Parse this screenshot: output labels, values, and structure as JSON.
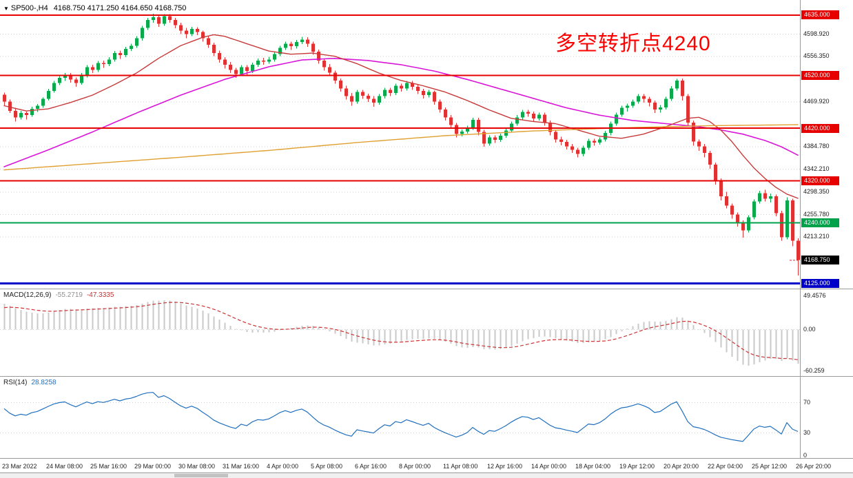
{
  "window": {
    "dropdown_glyph": "▼",
    "symbol": "SP500-,H4",
    "ohlc": "4168.750 4171.250 4164.650 4168.750"
  },
  "annotation": {
    "text": "多空转折点4240",
    "color": "#FF0000"
  },
  "chart_data": {
    "type": "candlestick",
    "symbol": "SP500-",
    "timeframe": "H4",
    "up_color": "#0BA94C",
    "down_color": "#E03232",
    "grid_color": "#CFCFCF",
    "price_axis": {
      "ticks": [
        {
          "price": 4598.92,
          "label": "4598.920"
        },
        {
          "price": 4556.35,
          "label": "4556.350"
        },
        {
          "price": 4469.92,
          "label": "4469.920"
        },
        {
          "price": 4384.78,
          "label": "4384.780"
        },
        {
          "price": 4342.21,
          "label": "4342.210"
        },
        {
          "price": 4298.35,
          "label": "4298.350"
        },
        {
          "price": 4255.78,
          "label": "4255.780"
        },
        {
          "price": 4213.21,
          "label": "4213.210"
        }
      ]
    },
    "hlines": [
      {
        "price": 4635,
        "label": "4635.000",
        "color": "#E60000",
        "width": 2
      },
      {
        "price": 4520,
        "label": "4520.000",
        "color": "#E60000",
        "width": 2
      },
      {
        "price": 4420,
        "label": "4420.000",
        "color": "#E60000",
        "width": 2
      },
      {
        "price": 4320,
        "label": "4320.000",
        "color": "#E60000",
        "width": 2
      },
      {
        "price": 4240,
        "label": "4240.000",
        "color": "#00A14B",
        "width": 2
      },
      {
        "price": 4125,
        "label": "4125.000",
        "color": "#0000C8",
        "width": 3
      }
    ],
    "current_price": {
      "price": 4168.75,
      "label": "4168.750",
      "badge_color": "#000000",
      "dash_color": "#D03030"
    },
    "time_labels": [
      {
        "i": 0,
        "t": "23 Mar 2022"
      },
      {
        "i": 8,
        "t": "24 Mar 08:00"
      },
      {
        "i": 16,
        "t": "25 Mar 16:00"
      },
      {
        "i": 24,
        "t": "29 Mar 00:00"
      },
      {
        "i": 32,
        "t": "30 Mar 08:00"
      },
      {
        "i": 40,
        "t": "31 Mar 16:00"
      },
      {
        "i": 48,
        "t": "4 Apr 00:00"
      },
      {
        "i": 56,
        "t": "5 Apr 08:00"
      },
      {
        "i": 64,
        "t": "6 Apr 16:00"
      },
      {
        "i": 72,
        "t": "8 Apr 00:00"
      },
      {
        "i": 80,
        "t": "11 Apr 08:00"
      },
      {
        "i": 88,
        "t": "12 Apr 16:00"
      },
      {
        "i": 96,
        "t": "14 Apr 00:00"
      },
      {
        "i": 104,
        "t": "18 Apr 04:00"
      },
      {
        "i": 112,
        "t": "19 Apr 12:00"
      },
      {
        "i": 120,
        "t": "20 Apr 20:00"
      },
      {
        "i": 128,
        "t": "22 Apr 04:00"
      },
      {
        "i": 136,
        "t": "25 Apr 12:00"
      },
      {
        "i": 144,
        "t": "26 Apr 20:00"
      }
    ],
    "candles": [
      [
        4483,
        4487,
        4462,
        4470
      ],
      [
        4470,
        4474,
        4448,
        4452
      ],
      [
        4452,
        4458,
        4432,
        4440
      ],
      [
        4440,
        4452,
        4436,
        4448
      ],
      [
        4448,
        4451,
        4436,
        4444
      ],
      [
        4444,
        4460,
        4441,
        4456
      ],
      [
        4456,
        4465,
        4450,
        4462
      ],
      [
        4462,
        4478,
        4458,
        4475
      ],
      [
        4475,
        4494,
        4472,
        4490
      ],
      [
        4490,
        4509,
        4487,
        4505
      ],
      [
        4505,
        4519,
        4501,
        4515
      ],
      [
        4515,
        4524,
        4509,
        4520
      ],
      [
        4520,
        4524,
        4506,
        4512
      ],
      [
        4512,
        4516,
        4498,
        4505
      ],
      [
        4505,
        4524,
        4502,
        4520
      ],
      [
        4520,
        4539,
        4516,
        4535
      ],
      [
        4535,
        4540,
        4524,
        4530
      ],
      [
        4530,
        4547,
        4526,
        4543
      ],
      [
        4543,
        4548,
        4534,
        4541
      ],
      [
        4541,
        4554,
        4537,
        4550
      ],
      [
        4550,
        4566,
        4546,
        4562
      ],
      [
        4562,
        4567,
        4551,
        4558
      ],
      [
        4558,
        4574,
        4554,
        4570
      ],
      [
        4570,
        4580,
        4566,
        4576
      ],
      [
        4576,
        4594,
        4572,
        4590
      ],
      [
        4590,
        4614,
        4586,
        4610
      ],
      [
        4610,
        4629,
        4606,
        4625
      ],
      [
        4625,
        4637,
        4620,
        4630
      ],
      [
        4630,
        4634,
        4612,
        4618
      ],
      [
        4618,
        4636,
        4614,
        4632
      ],
      [
        4632,
        4636,
        4620,
        4625
      ],
      [
        4625,
        4629,
        4609,
        4615
      ],
      [
        4615,
        4620,
        4598,
        4605
      ],
      [
        4605,
        4610,
        4590,
        4598
      ],
      [
        4598,
        4612,
        4594,
        4608
      ],
      [
        4608,
        4611,
        4596,
        4602
      ],
      [
        4602,
        4605,
        4584,
        4590
      ],
      [
        4590,
        4594,
        4572,
        4578
      ],
      [
        4578,
        4582,
        4556,
        4562
      ],
      [
        4562,
        4567,
        4544,
        4550
      ],
      [
        4550,
        4554,
        4533,
        4540
      ],
      [
        4540,
        4545,
        4524,
        4530
      ],
      [
        4530,
        4534,
        4515,
        4522
      ],
      [
        4522,
        4539,
        4518,
        4535
      ],
      [
        4535,
        4539,
        4521,
        4528
      ],
      [
        4528,
        4544,
        4524,
        4540
      ],
      [
        4540,
        4552,
        4536,
        4548
      ],
      [
        4548,
        4553,
        4540,
        4546
      ],
      [
        4546,
        4555,
        4542,
        4550
      ],
      [
        4550,
        4564,
        4546,
        4560
      ],
      [
        4560,
        4576,
        4556,
        4572
      ],
      [
        4572,
        4584,
        4568,
        4580
      ],
      [
        4580,
        4584,
        4568,
        4575
      ],
      [
        4575,
        4587,
        4571,
        4583
      ],
      [
        4583,
        4593,
        4579,
        4588
      ],
      [
        4588,
        4592,
        4574,
        4580
      ],
      [
        4580,
        4584,
        4559,
        4565
      ],
      [
        4565,
        4569,
        4542,
        4548
      ],
      [
        4548,
        4552,
        4529,
        4535
      ],
      [
        4535,
        4541,
        4519,
        4525
      ],
      [
        4525,
        4529,
        4504,
        4510
      ],
      [
        4510,
        4514,
        4489,
        4495
      ],
      [
        4495,
        4500,
        4474,
        4480
      ],
      [
        4480,
        4486,
        4462,
        4470
      ],
      [
        4470,
        4492,
        4466,
        4488
      ],
      [
        4488,
        4492,
        4475,
        4481
      ],
      [
        4481,
        4485,
        4469,
        4475
      ],
      [
        4475,
        4480,
        4460,
        4468
      ],
      [
        4468,
        4484,
        4464,
        4480
      ],
      [
        4480,
        4496,
        4476,
        4492
      ],
      [
        4492,
        4496,
        4480,
        4486
      ],
      [
        4486,
        4504,
        4482,
        4500
      ],
      [
        4500,
        4504,
        4489,
        4495
      ],
      [
        4495,
        4509,
        4491,
        4505
      ],
      [
        4505,
        4509,
        4492,
        4498
      ],
      [
        4498,
        4502,
        4484,
        4490
      ],
      [
        4490,
        4494,
        4476,
        4482
      ],
      [
        4482,
        4492,
        4478,
        4488
      ],
      [
        4488,
        4491,
        4464,
        4470
      ],
      [
        4470,
        4474,
        4449,
        4455
      ],
      [
        4455,
        4459,
        4434,
        4440
      ],
      [
        4440,
        4444,
        4419,
        4425
      ],
      [
        4425,
        4429,
        4402,
        4408
      ],
      [
        4408,
        4417,
        4404,
        4413
      ],
      [
        4413,
        4424,
        4409,
        4420
      ],
      [
        4420,
        4439,
        4416,
        4435
      ],
      [
        4435,
        4439,
        4406,
        4412
      ],
      [
        4412,
        4416,
        4384,
        4390
      ],
      [
        4390,
        4406,
        4386,
        4402
      ],
      [
        4402,
        4406,
        4391,
        4397
      ],
      [
        4397,
        4409,
        4393,
        4405
      ],
      [
        4405,
        4419,
        4401,
        4415
      ],
      [
        4415,
        4432,
        4411,
        4428
      ],
      [
        4428,
        4444,
        4424,
        4440
      ],
      [
        4440,
        4454,
        4436,
        4450
      ],
      [
        4450,
        4454,
        4441,
        4447
      ],
      [
        4447,
        4451,
        4432,
        4438
      ],
      [
        4438,
        4449,
        4434,
        4445
      ],
      [
        4445,
        4449,
        4424,
        4430
      ],
      [
        4430,
        4434,
        4406,
        4412
      ],
      [
        4412,
        4416,
        4392,
        4398
      ],
      [
        4398,
        4403,
        4387,
        4393
      ],
      [
        4393,
        4397,
        4379,
        4385
      ],
      [
        4385,
        4389,
        4372,
        4378
      ],
      [
        4378,
        4382,
        4364,
        4370
      ],
      [
        4370,
        4386,
        4366,
        4382
      ],
      [
        4382,
        4399,
        4378,
        4395
      ],
      [
        4395,
        4399,
        4386,
        4392
      ],
      [
        4392,
        4402,
        4388,
        4398
      ],
      [
        4398,
        4414,
        4394,
        4410
      ],
      [
        4410,
        4432,
        4406,
        4428
      ],
      [
        4428,
        4449,
        4424,
        4445
      ],
      [
        4445,
        4462,
        4441,
        4458
      ],
      [
        4458,
        4466,
        4451,
        4462
      ],
      [
        4462,
        4474,
        4458,
        4470
      ],
      [
        4470,
        4484,
        4466,
        4480
      ],
      [
        4480,
        4484,
        4468,
        4475
      ],
      [
        4475,
        4479,
        4461,
        4468
      ],
      [
        4468,
        4472,
        4448,
        4455
      ],
      [
        4455,
        4463,
        4449,
        4459
      ],
      [
        4459,
        4479,
        4455,
        4475
      ],
      [
        4475,
        4499,
        4471,
        4495
      ],
      [
        4495,
        4513,
        4491,
        4510
      ],
      [
        4510,
        4514,
        4472,
        4480
      ],
      [
        4480,
        4484,
        4422,
        4430
      ],
      [
        4430,
        4434,
        4386,
        4394
      ],
      [
        4394,
        4398,
        4376,
        4385
      ],
      [
        4385,
        4389,
        4364,
        4372
      ],
      [
        4372,
        4376,
        4342,
        4350
      ],
      [
        4350,
        4354,
        4312,
        4320
      ],
      [
        4320,
        4324,
        4282,
        4290
      ],
      [
        4290,
        4298,
        4267,
        4272
      ],
      [
        4272,
        4276,
        4247,
        4255
      ],
      [
        4255,
        4259,
        4232,
        4240
      ],
      [
        4240,
        4244,
        4211,
        4225
      ],
      [
        4225,
        4254,
        4221,
        4250
      ],
      [
        4250,
        4284,
        4246,
        4280
      ],
      [
        4280,
        4300,
        4276,
        4296
      ],
      [
        4296,
        4302,
        4280,
        4285
      ],
      [
        4285,
        4295,
        4278,
        4290
      ],
      [
        4290,
        4293,
        4252,
        4258
      ],
      [
        4258,
        4262,
        4205,
        4212
      ],
      [
        4212,
        4288,
        4208,
        4282
      ],
      [
        4282,
        4285,
        4195,
        4205
      ],
      [
        4205,
        4210,
        4139,
        4168.75
      ]
    ],
    "ma_lines": [
      {
        "name": "ma-slow-magenta",
        "color": "#D915D9",
        "width": 1.6,
        "points": [
          [
            0,
            4346
          ],
          [
            8,
            4378
          ],
          [
            16,
            4412
          ],
          [
            24,
            4448
          ],
          [
            32,
            4482
          ],
          [
            40,
            4512
          ],
          [
            48,
            4536
          ],
          [
            54,
            4549
          ],
          [
            60,
            4552
          ],
          [
            66,
            4548
          ],
          [
            72,
            4540
          ],
          [
            78,
            4528
          ],
          [
            84,
            4512
          ],
          [
            90,
            4494
          ],
          [
            96,
            4476
          ],
          [
            102,
            4458
          ],
          [
            108,
            4444
          ],
          [
            114,
            4434
          ],
          [
            120,
            4428
          ],
          [
            126,
            4422
          ],
          [
            130,
            4416
          ],
          [
            134,
            4408
          ],
          [
            138,
            4396
          ],
          [
            141,
            4384
          ],
          [
            144,
            4368
          ]
        ]
      },
      {
        "name": "ma-mid-red",
        "color": "#C83A3A",
        "width": 1.4,
        "points": [
          [
            0,
            4462
          ],
          [
            4,
            4452
          ],
          [
            8,
            4456
          ],
          [
            12,
            4468
          ],
          [
            16,
            4482
          ],
          [
            20,
            4502
          ],
          [
            24,
            4524
          ],
          [
            28,
            4552
          ],
          [
            32,
            4576
          ],
          [
            36,
            4592
          ],
          [
            38,
            4597
          ],
          [
            40,
            4594
          ],
          [
            44,
            4580
          ],
          [
            48,
            4566
          ],
          [
            52,
            4560
          ],
          [
            56,
            4562
          ],
          [
            60,
            4556
          ],
          [
            64,
            4542
          ],
          [
            68,
            4524
          ],
          [
            72,
            4510
          ],
          [
            76,
            4500
          ],
          [
            80,
            4488
          ],
          [
            84,
            4472
          ],
          [
            88,
            4454
          ],
          [
            92,
            4438
          ],
          [
            96,
            4432
          ],
          [
            100,
            4428
          ],
          [
            104,
            4416
          ],
          [
            108,
            4404
          ],
          [
            112,
            4400
          ],
          [
            116,
            4408
          ],
          [
            120,
            4422
          ],
          [
            124,
            4438
          ],
          [
            126,
            4440
          ],
          [
            128,
            4432
          ],
          [
            130,
            4416
          ],
          [
            132,
            4394
          ],
          [
            134,
            4368
          ],
          [
            136,
            4344
          ],
          [
            138,
            4324
          ],
          [
            140,
            4307
          ],
          [
            142,
            4294
          ],
          [
            144,
            4286
          ]
        ]
      },
      {
        "name": "ma-long-orange",
        "color": "#E0A030",
        "width": 1.4,
        "points": [
          [
            0,
            4340
          ],
          [
            16,
            4352
          ],
          [
            32,
            4364
          ],
          [
            48,
            4377
          ],
          [
            64,
            4392
          ],
          [
            80,
            4405
          ],
          [
            96,
            4414
          ],
          [
            112,
            4420
          ],
          [
            128,
            4424
          ],
          [
            144,
            4426
          ]
        ]
      }
    ],
    "macd": {
      "name_params": "MACD(12,26,9)",
      "value_main": "-55.2719",
      "value_signal": "-47.3335",
      "hist_color": "#C9C9C9",
      "signal_color": "#CC3333",
      "axis_labels": [
        {
          "v": 49.4576,
          "t": "49.4576"
        },
        {
          "v": 0,
          "t": "0.00"
        },
        {
          "v": -60.259,
          "t": "-60.259"
        }
      ],
      "seeds": {
        "ema12": 4450,
        "ema26": 4412,
        "signal": 30
      }
    },
    "rsi": {
      "name_params": "RSI(14)",
      "value": "28.8258",
      "color": "#1F6FBF",
      "levels": [
        70,
        30
      ],
      "axis_labels": [
        {
          "v": 70,
          "t": "70"
        },
        {
          "v": 30,
          "t": "30"
        },
        {
          "v": 0,
          "t": "0"
        }
      ],
      "seed_gain": 8,
      "seed_loss": 5
    }
  }
}
